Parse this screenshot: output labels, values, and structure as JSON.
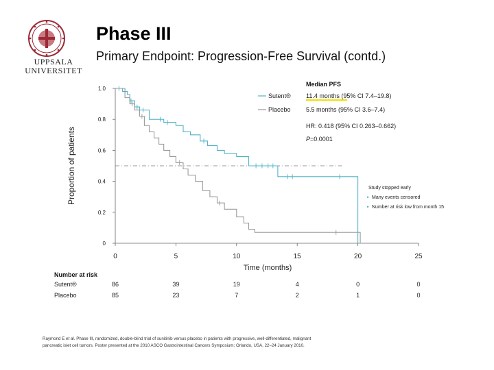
{
  "header": {
    "title": "Phase III",
    "subtitle": "Primary Endpoint: Progression-Free Survival (contd.)",
    "logo_line1": "UPPSALA",
    "logo_line2": "UNIVERSITET"
  },
  "colors": {
    "sutent": "#4fb3c6",
    "placebo": "#9a9a9a",
    "median_line": "#777777",
    "highlight": "#f2e000",
    "axis": "#666666"
  },
  "chart_data": {
    "type": "line",
    "title": "Median PFS",
    "xlabel": "Time (months)",
    "ylabel": "Proportion of patients",
    "xlim": [
      0,
      25
    ],
    "ylim": [
      0,
      1
    ],
    "xticks": [
      0,
      5,
      10,
      15,
      20,
      25
    ],
    "xtick_labels": [
      "0",
      "5",
      "10",
      "15",
      "20",
      "25"
    ],
    "yticks": [
      0,
      0.2,
      0.4,
      0.6,
      0.8,
      1.0
    ],
    "ytick_labels": [
      "0",
      "0.2",
      "0.4",
      "0.6",
      "0.8",
      "1.0"
    ],
    "median_reference": 0.5,
    "series": [
      {
        "name": "Sutent®",
        "color": "#4fb3c6",
        "points": [
          [
            0,
            1.0
          ],
          [
            0.6,
            1.0
          ],
          [
            0.6,
            0.98
          ],
          [
            1.0,
            0.98
          ],
          [
            1.0,
            0.96
          ],
          [
            1.2,
            0.96
          ],
          [
            1.2,
            0.92
          ],
          [
            1.6,
            0.92
          ],
          [
            1.6,
            0.88
          ],
          [
            2.0,
            0.88
          ],
          [
            2.0,
            0.86
          ],
          [
            2.8,
            0.86
          ],
          [
            2.8,
            0.8
          ],
          [
            3.4,
            0.8
          ],
          [
            3.4,
            0.8
          ],
          [
            4.0,
            0.8
          ],
          [
            4.0,
            0.78
          ],
          [
            5.0,
            0.78
          ],
          [
            5.0,
            0.76
          ],
          [
            5.6,
            0.76
          ],
          [
            5.6,
            0.72
          ],
          [
            6.2,
            0.72
          ],
          [
            6.2,
            0.7
          ],
          [
            7.0,
            0.7
          ],
          [
            7.0,
            0.66
          ],
          [
            7.6,
            0.66
          ],
          [
            7.6,
            0.63
          ],
          [
            8.4,
            0.63
          ],
          [
            8.4,
            0.6
          ],
          [
            9.0,
            0.6
          ],
          [
            9.0,
            0.58
          ],
          [
            10.0,
            0.58
          ],
          [
            10.0,
            0.56
          ],
          [
            11.0,
            0.56
          ],
          [
            11.0,
            0.5
          ],
          [
            13.4,
            0.5
          ],
          [
            13.4,
            0.43
          ],
          [
            20.0,
            0.43
          ],
          [
            20.0,
            0.0
          ]
        ],
        "censored": [
          [
            0.3,
            1.0
          ],
          [
            0.8,
            0.98
          ],
          [
            1.3,
            0.92
          ],
          [
            1.8,
            0.88
          ],
          [
            2.3,
            0.86
          ],
          [
            3.7,
            0.8
          ],
          [
            4.3,
            0.78
          ],
          [
            7.3,
            0.66
          ],
          [
            11.6,
            0.5
          ],
          [
            12.1,
            0.5
          ],
          [
            12.6,
            0.5
          ],
          [
            13.0,
            0.5
          ],
          [
            14.2,
            0.43
          ],
          [
            14.6,
            0.43
          ],
          [
            18.5,
            0.43
          ]
        ]
      },
      {
        "name": "Placebo",
        "color": "#9a9a9a",
        "points": [
          [
            0,
            1.0
          ],
          [
            0.8,
            1.0
          ],
          [
            0.8,
            0.94
          ],
          [
            1.2,
            0.94
          ],
          [
            1.2,
            0.9
          ],
          [
            1.6,
            0.9
          ],
          [
            1.6,
            0.86
          ],
          [
            2.0,
            0.86
          ],
          [
            2.0,
            0.82
          ],
          [
            2.4,
            0.82
          ],
          [
            2.4,
            0.76
          ],
          [
            2.8,
            0.76
          ],
          [
            2.8,
            0.72
          ],
          [
            3.2,
            0.72
          ],
          [
            3.2,
            0.68
          ],
          [
            3.6,
            0.68
          ],
          [
            3.6,
            0.64
          ],
          [
            4.0,
            0.64
          ],
          [
            4.0,
            0.6
          ],
          [
            4.5,
            0.6
          ],
          [
            4.5,
            0.56
          ],
          [
            5.0,
            0.56
          ],
          [
            5.0,
            0.52
          ],
          [
            5.6,
            0.52
          ],
          [
            5.6,
            0.48
          ],
          [
            6.0,
            0.48
          ],
          [
            6.0,
            0.44
          ],
          [
            6.6,
            0.44
          ],
          [
            6.6,
            0.4
          ],
          [
            7.2,
            0.4
          ],
          [
            7.2,
            0.34
          ],
          [
            7.8,
            0.34
          ],
          [
            7.8,
            0.3
          ],
          [
            8.4,
            0.3
          ],
          [
            8.4,
            0.26
          ],
          [
            9.0,
            0.26
          ],
          [
            9.0,
            0.22
          ],
          [
            10.0,
            0.22
          ],
          [
            10.0,
            0.17
          ],
          [
            10.6,
            0.17
          ],
          [
            10.6,
            0.13
          ],
          [
            11.0,
            0.13
          ],
          [
            11.0,
            0.09
          ],
          [
            11.5,
            0.09
          ],
          [
            11.5,
            0.07
          ],
          [
            20.2,
            0.07
          ],
          [
            20.2,
            0.0
          ]
        ],
        "censored": [
          [
            1.4,
            0.9
          ],
          [
            2.2,
            0.82
          ],
          [
            5.3,
            0.52
          ],
          [
            8.6,
            0.26
          ],
          [
            18.2,
            0.07
          ]
        ]
      }
    ],
    "legend": [
      {
        "label": "Sutent®",
        "stat": "11.4 months (95% CI 7.4–19.8)"
      },
      {
        "label": "Placebo",
        "stat": "5.5 months (95% CI 3.6–7.4)"
      }
    ],
    "hr_text": "HR: 0.418 (95% CI 0.263–0.662)",
    "p_label": "P",
    "p_value": "=0.0001",
    "annotation": {
      "title": "Study stopped early",
      "bullets": [
        "Many events censored",
        "Number at risk low from month 15"
      ]
    },
    "risk_table": {
      "title": "Number at risk",
      "times": [
        0,
        5,
        10,
        15,
        20,
        25
      ],
      "rows": [
        {
          "label": "Sutent®",
          "values": [
            "86",
            "39",
            "19",
            "4",
            "0",
            "0"
          ]
        },
        {
          "label": "Placebo",
          "values": [
            "85",
            "23",
            "7",
            "2",
            "1",
            "0"
          ]
        }
      ]
    }
  },
  "footer": {
    "line1_author": "Raymond E",
    "line1_etal": " et al",
    "line1_rest": ". Phase III, randomized, double-blind trial of sunitinib versus placebo in patients with progressive, well-differentiated, malignant",
    "line2": "pancreatic islet cell tumors. Poster presented at the 2010 ASCO Gastrointestinal Cancers Symposium; Orlando, USA, 22–24 January 2010."
  }
}
